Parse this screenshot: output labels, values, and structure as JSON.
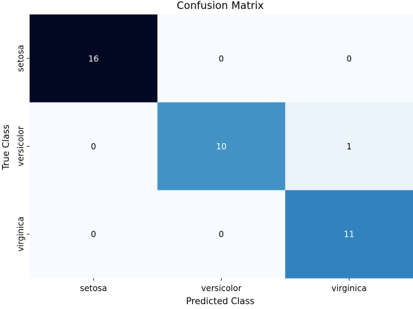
{
  "chart_data": {
    "type": "heatmap",
    "title": "Confusion Matrix",
    "xlabel": "Predicted Class",
    "ylabel": "True Class",
    "x_categories": [
      "setosa",
      "versicolor",
      "virginica"
    ],
    "y_categories": [
      "setosa",
      "versicolor",
      "virginica"
    ],
    "values": [
      [
        16,
        0,
        0
      ],
      [
        0,
        10,
        1
      ],
      [
        0,
        0,
        11
      ]
    ],
    "colormap": "Blues",
    "color_range": [
      0,
      16
    ],
    "colorbar": false
  }
}
